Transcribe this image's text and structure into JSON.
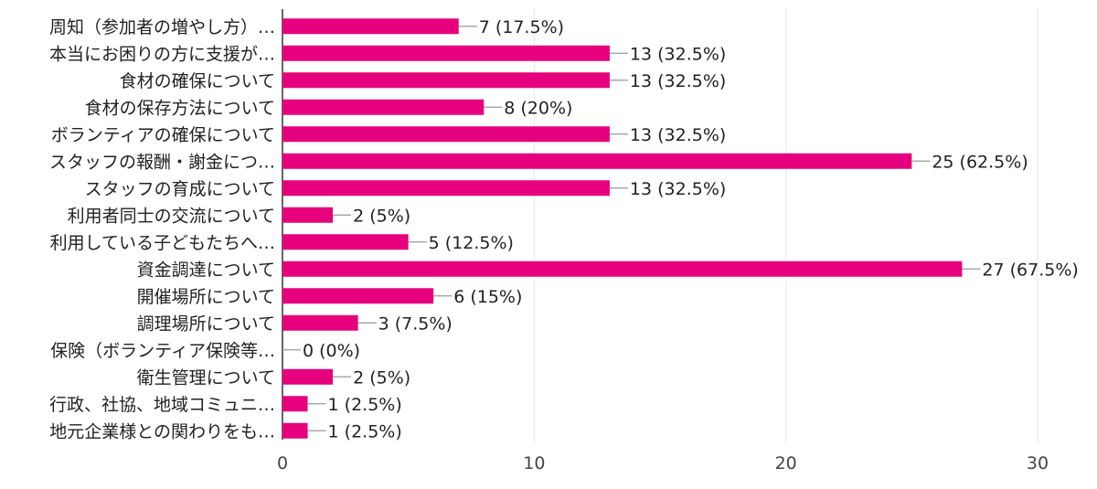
{
  "chart_data": {
    "type": "bar",
    "orientation": "horizontal",
    "title": "",
    "xlabel": "",
    "ylabel": "",
    "xlim": [
      0,
      30
    ],
    "x_ticks": [
      0,
      10,
      20,
      30
    ],
    "grid": true,
    "bar_color": "#e6007e",
    "categories": [
      "周知（参加者の増やし方）…",
      "本当にお困りの方に支援が…",
      "食材の確保について",
      "食材の保存方法について",
      "ボランティアの確保について",
      "スタッフの報酬・謝金につ…",
      "スタッフの育成について",
      "利用者同士の交流について",
      "利用している子どもたちへ…",
      "資金調達について",
      "開催場所について",
      "調理場所について",
      "保険（ボランティア保険等…",
      "衛生管理について",
      "行政、社協、地域コミュニ…",
      "地元企業様との関わりをも…"
    ],
    "values": [
      7,
      13,
      13,
      8,
      13,
      25,
      13,
      2,
      5,
      27,
      6,
      3,
      0,
      2,
      1,
      1
    ],
    "value_labels": [
      "7 (17.5%)",
      "13 (32.5%)",
      "13 (32.5%)",
      "8 (20%)",
      "13 (32.5%)",
      "25 (62.5%)",
      "13 (32.5%)",
      "2 (5%)",
      "5 (12.5%)",
      "27 (67.5%)",
      "6 (15%)",
      "3 (7.5%)",
      "0 (0%)",
      "2 (5%)",
      "1 (2.5%)",
      "1 (2.5%)"
    ]
  }
}
